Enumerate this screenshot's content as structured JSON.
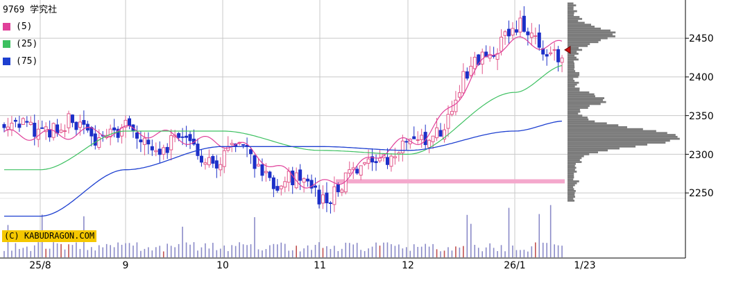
{
  "title": "9769 学究社",
  "copyright": "(C) KABUDRAGON.COM",
  "legend": [
    {
      "label": "(5)",
      "color": "#e0409a"
    },
    {
      "label": "(25)",
      "color": "#3cc060"
    },
    {
      "label": "(75)",
      "color": "#1d3fd0"
    }
  ],
  "colors": {
    "up": "#e2558a",
    "down": "#1c2fc8",
    "volume": "#8a8ac8",
    "volume_up": "#c05050",
    "ma5": "#e0409a",
    "ma25": "#3cc060",
    "ma75": "#1d3fd0",
    "profile": "#7b7b7b",
    "support_band": "#f4a8cc",
    "grid": "#c8c8c8",
    "price_marker": "#cc1111"
  },
  "chart_data": {
    "type": "candlestick",
    "title": "9769 学究社",
    "y_ticks": [
      2250,
      2300,
      2350,
      2400,
      2450
    ],
    "x_ticks": [
      "25/8",
      "9",
      "10",
      "11",
      "12",
      "26/1",
      "1/23"
    ],
    "ylim": [
      2167,
      2497
    ],
    "grid": true,
    "legend_position": "top-left",
    "current_price": 2435,
    "support_band_level": 2265,
    "checkpoints": [
      {
        "x": "25/8",
        "close": 2335,
        "ma5": 2325,
        "ma25": 2280,
        "ma75": 2220
      },
      {
        "x": "9",
        "close": 2325,
        "ma5": 2330,
        "ma25": 2330,
        "ma75": 2280
      },
      {
        "x": "10",
        "close": 2300,
        "ma5": 2315,
        "ma25": 2330,
        "ma75": 2310
      },
      {
        "x": "11",
        "close": 2250,
        "ma5": 2260,
        "ma25": 2305,
        "ma75": 2310
      },
      {
        "x": "12",
        "close": 2310,
        "ma5": 2315,
        "ma25": 2300,
        "ma75": 2305
      },
      {
        "x": "26/1",
        "close": 2460,
        "ma5": 2445,
        "ma25": 2380,
        "ma75": 2330
      },
      {
        "x": "1/23",
        "close": 2435,
        "ma5": 2440,
        "ma25": 2415,
        "ma75": 2343
      }
    ]
  }
}
